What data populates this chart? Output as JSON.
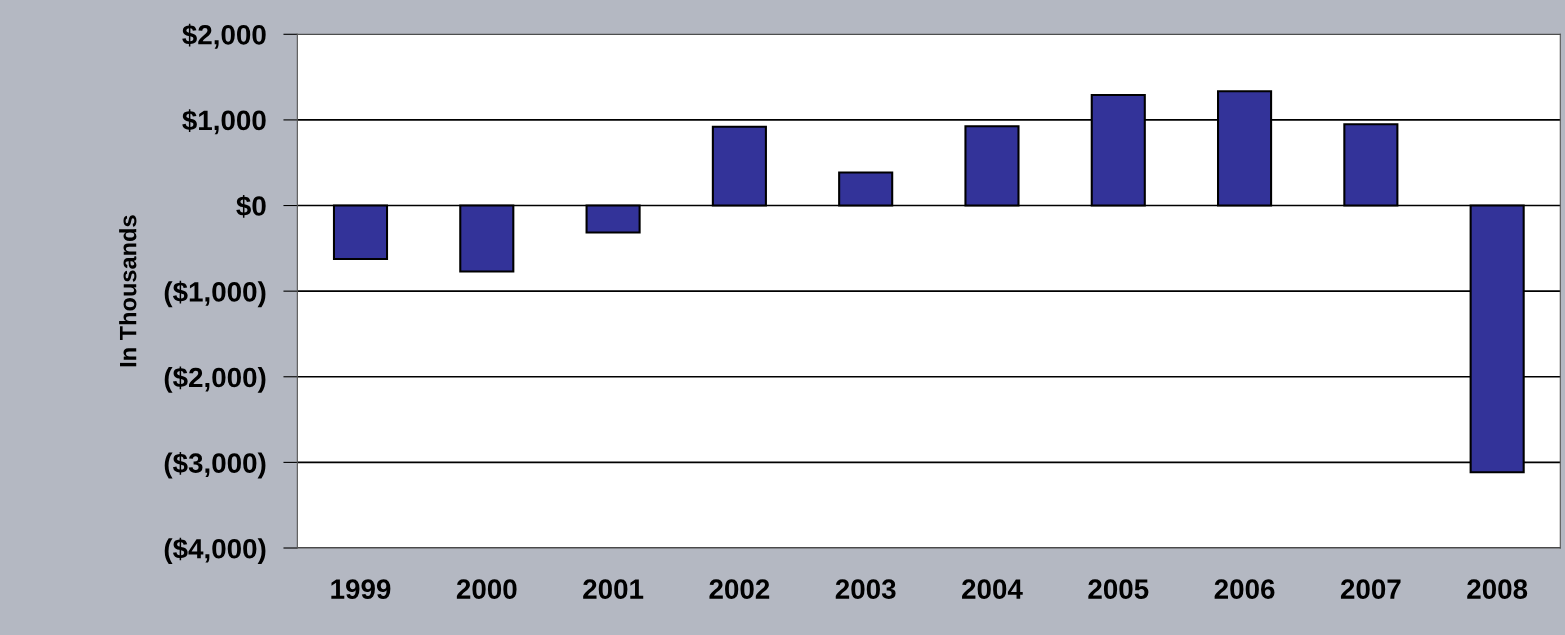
{
  "chart_data": {
    "type": "bar",
    "ylabel": "In Thousands",
    "categories": [
      "1999",
      "2000",
      "2001",
      "2002",
      "2003",
      "2004",
      "2005",
      "2006",
      "2007",
      "2008"
    ],
    "values": [
      -625,
      -770,
      -315,
      920,
      385,
      925,
      1290,
      1335,
      950,
      -3115
    ],
    "color": "#333399",
    "ylim": [
      -4000,
      2000
    ],
    "yticks": [
      {
        "value": -4000,
        "label": "($4,000)"
      },
      {
        "value": -3000,
        "label": "($3,000)"
      },
      {
        "value": -2000,
        "label": "($2,000)"
      },
      {
        "value": -1000,
        "label": "($1,000)"
      },
      {
        "value": 0,
        "label": "$0"
      },
      {
        "value": 1000,
        "label": "$1,000"
      },
      {
        "value": 2000,
        "label": "$2,000"
      }
    ],
    "grid": "y"
  }
}
